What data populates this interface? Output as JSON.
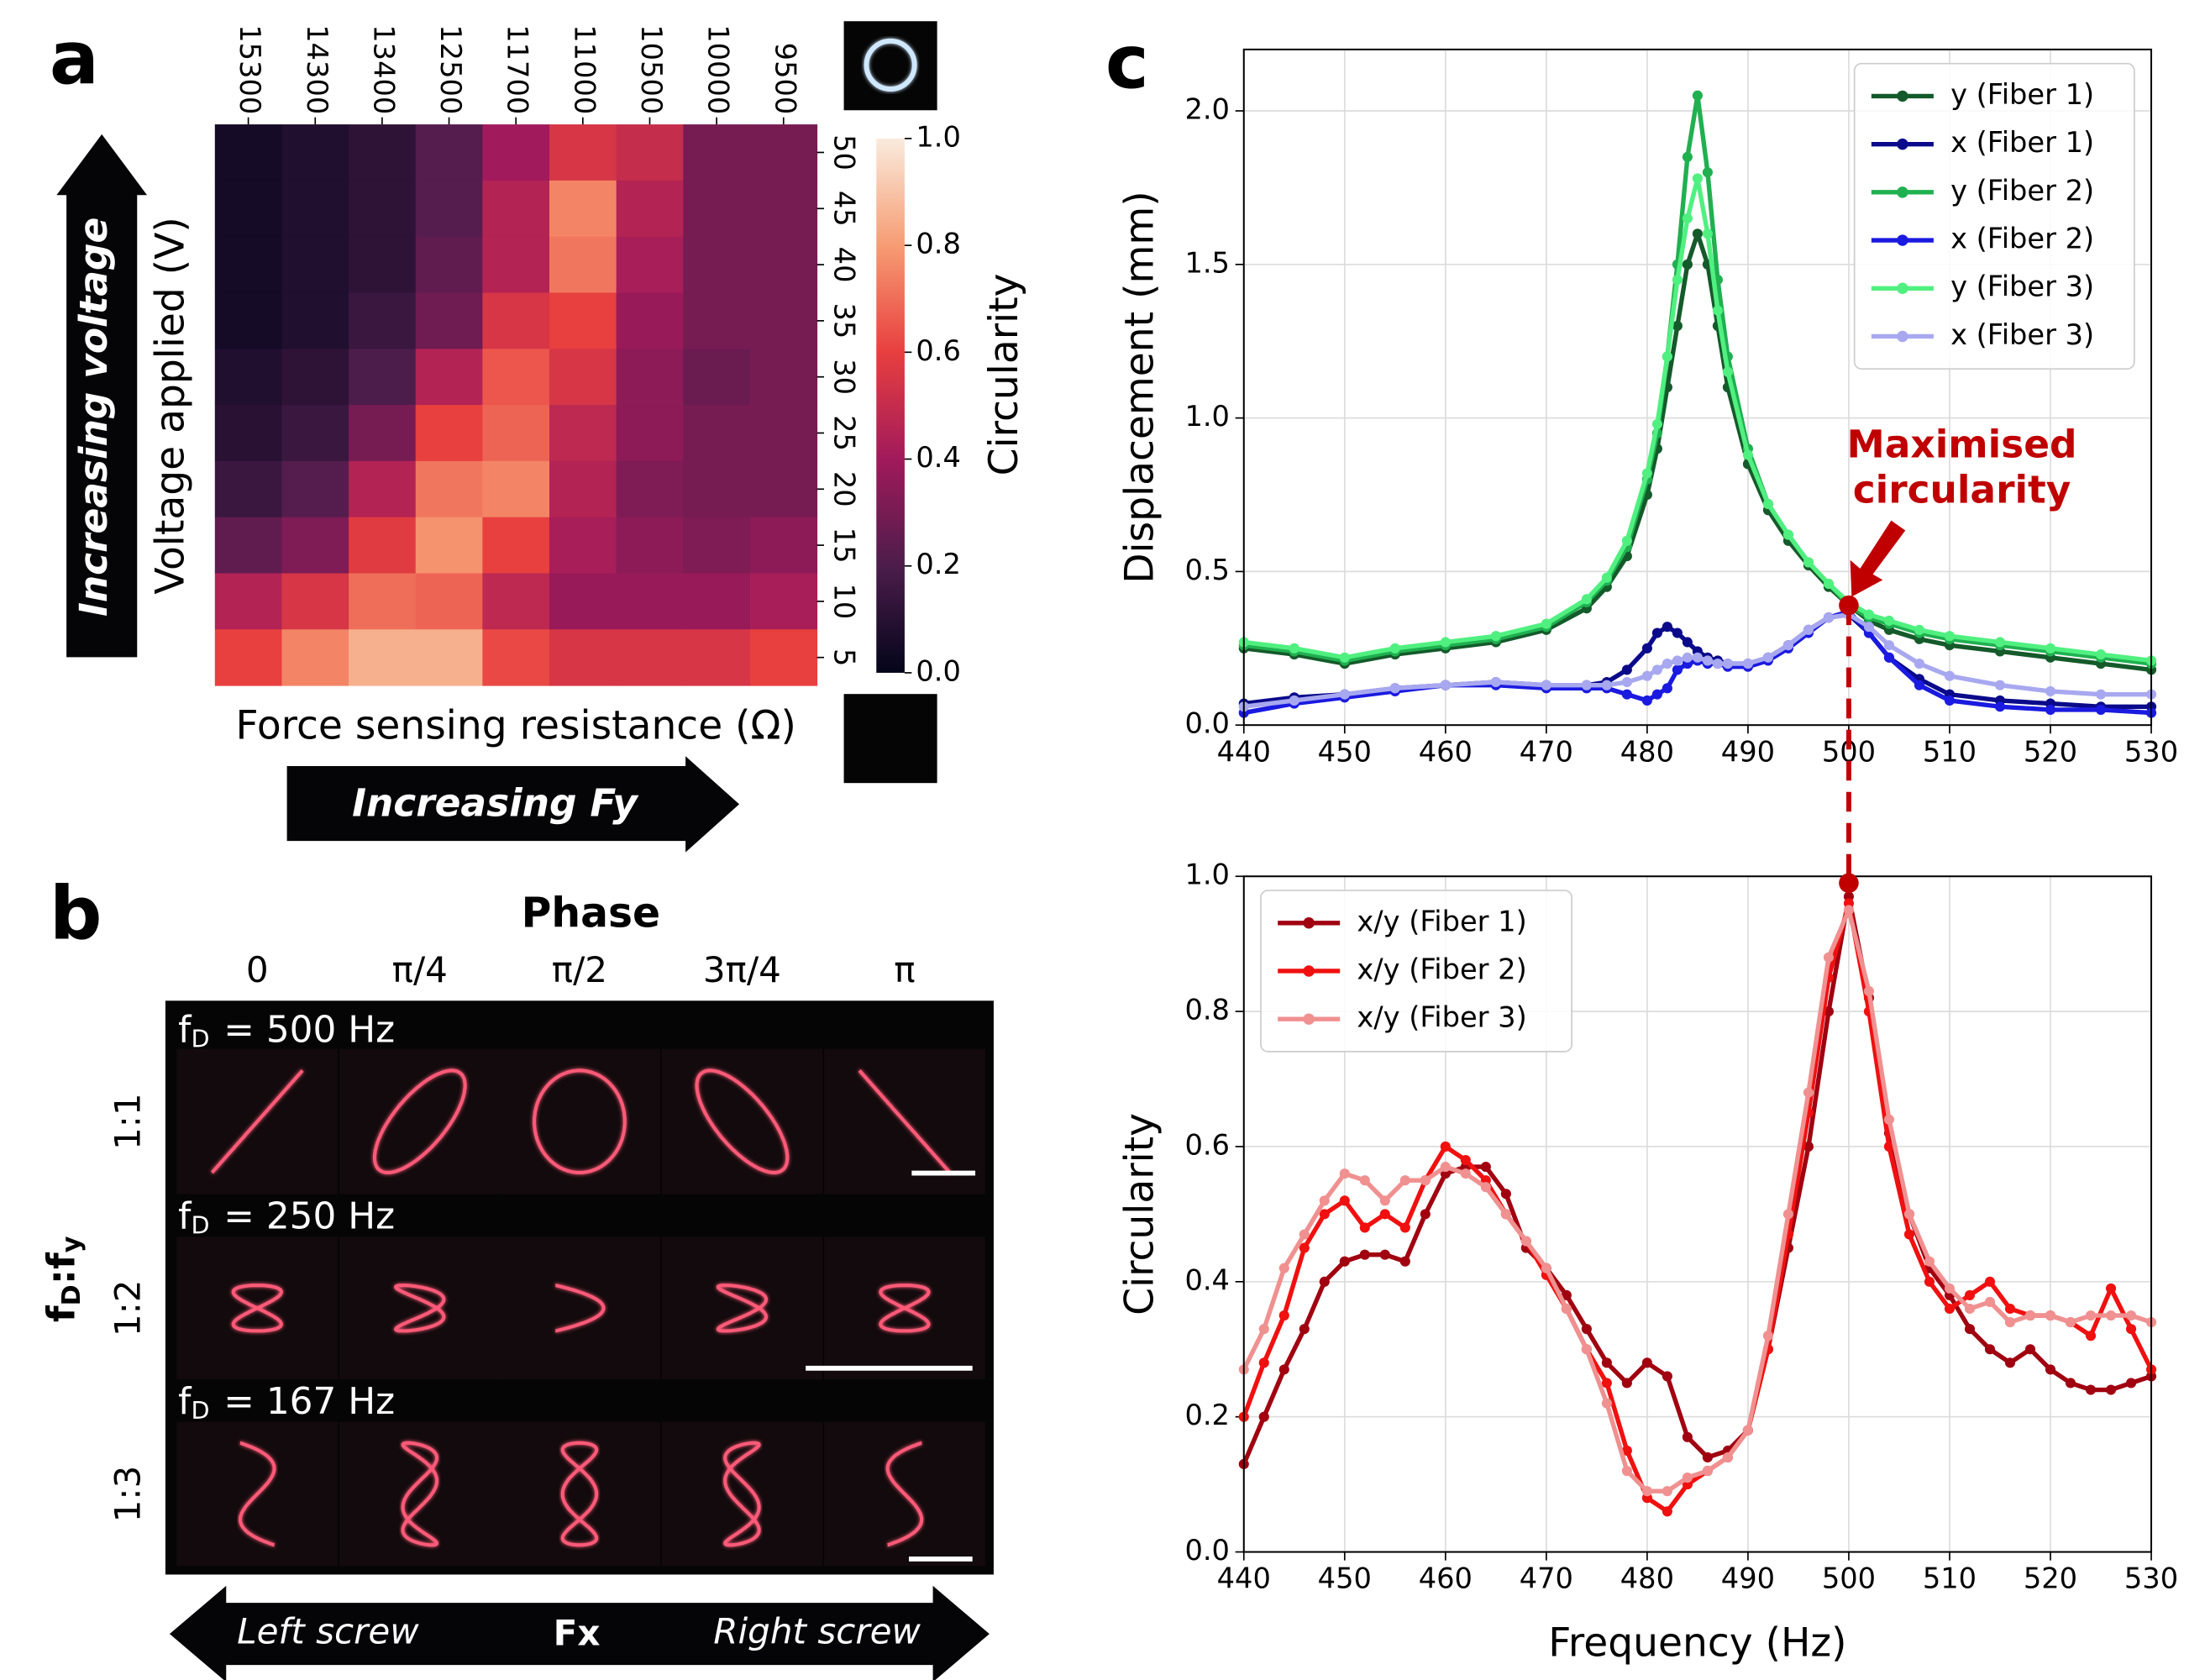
{
  "labels": {
    "panel_a": "a",
    "panel_b": "b",
    "panel_c": "c"
  },
  "panel_a": {
    "voltage_arrow": "Increasing voltage",
    "force_arrow": "Increasing Fy"
  },
  "panel_b": {
    "phase_title": "Phase",
    "phases": [
      "0",
      "π/4",
      "π/2",
      "3π/4",
      "π"
    ],
    "ratio_axis": {
      "f": "f",
      "sub1": "D",
      "mid": ":f",
      "sub2": "y"
    },
    "rows": [
      {
        "ratio": "1:1",
        "f": "f",
        "sub": "D",
        "rest": "= 500 Hz"
      },
      {
        "ratio": "1:2",
        "f": "f",
        "sub": "D",
        "rest": "= 250 Hz"
      },
      {
        "ratio": "1:3",
        "f": "f",
        "sub": "D",
        "rest": "= 167 Hz"
      }
    ],
    "arrow": {
      "left": "Left screw",
      "center": "Fx",
      "right": "Right screw"
    }
  },
  "chart_data": [
    {
      "type": "heatmap",
      "xlabel": "Force sensing resistance (Ω)",
      "ylabel": "Voltage applied (V)",
      "categories": [
        "15300",
        "14300",
        "13400",
        "12500",
        "11700",
        "11000",
        "10500",
        "10000",
        "9500"
      ],
      "rows": [
        "50",
        "45",
        "40",
        "35",
        "30",
        "25",
        "20",
        "15",
        "10",
        "5"
      ],
      "values": [
        [
          0.05,
          0.08,
          0.12,
          0.22,
          0.4,
          0.55,
          0.5,
          0.3,
          0.3
        ],
        [
          0.05,
          0.08,
          0.12,
          0.22,
          0.45,
          0.75,
          0.45,
          0.3,
          0.3
        ],
        [
          0.05,
          0.08,
          0.12,
          0.25,
          0.45,
          0.72,
          0.42,
          0.3,
          0.3
        ],
        [
          0.05,
          0.08,
          0.15,
          0.28,
          0.55,
          0.6,
          0.38,
          0.3,
          0.3
        ],
        [
          0.08,
          0.12,
          0.2,
          0.45,
          0.65,
          0.55,
          0.35,
          0.27,
          0.3
        ],
        [
          0.1,
          0.15,
          0.3,
          0.6,
          0.68,
          0.48,
          0.35,
          0.3,
          0.3
        ],
        [
          0.15,
          0.22,
          0.45,
          0.72,
          0.75,
          0.45,
          0.32,
          0.3,
          0.3
        ],
        [
          0.25,
          0.32,
          0.58,
          0.78,
          0.6,
          0.42,
          0.35,
          0.32,
          0.35
        ],
        [
          0.45,
          0.55,
          0.7,
          0.68,
          0.48,
          0.38,
          0.38,
          0.38,
          0.42
        ],
        [
          0.6,
          0.75,
          0.85,
          0.85,
          0.62,
          0.55,
          0.55,
          0.55,
          0.6
        ]
      ],
      "colormap": [
        "#03051a",
        "#4c1d4b",
        "#a11a5b",
        "#e83f3f",
        "#f69c73",
        "#faebdd"
      ],
      "colorbar": {
        "label": "Circularity",
        "lim": [
          0,
          1
        ],
        "ticks": [
          {
            "value": 0,
            "label": "0.0"
          },
          0.2,
          0.4,
          0.6,
          0.8,
          {
            "value": 1,
            "label": "1.0"
          }
        ]
      }
    },
    {
      "type": "line",
      "ylabel": "Displacement (mm)",
      "xlim": [
        440,
        530
      ],
      "ylim": [
        0,
        2.2
      ],
      "xticks": [
        440,
        450,
        460,
        470,
        480,
        490,
        500,
        510,
        520,
        530
      ],
      "yticks": [
        {
          "value": 0,
          "label": "0.0"
        },
        0.5,
        {
          "value": 1,
          "label": "1.0"
        },
        1.5,
        {
          "value": 2,
          "label": "2.0"
        }
      ],
      "grid": true,
      "legend": "upper right",
      "x": [
        440,
        445,
        450,
        455,
        460,
        465,
        470,
        474,
        476,
        478,
        480,
        481,
        482,
        483,
        484,
        485,
        486,
        487,
        488,
        490,
        492,
        494,
        496,
        498,
        500,
        502,
        504,
        507,
        510,
        515,
        520,
        525,
        530
      ],
      "series": [
        {
          "name": "y (Fiber 1)",
          "color": "#145a2a",
          "values": [
            0.25,
            0.23,
            0.2,
            0.23,
            0.25,
            0.27,
            0.31,
            0.38,
            0.45,
            0.55,
            0.75,
            0.9,
            1.1,
            1.3,
            1.5,
            1.6,
            1.5,
            1.3,
            1.1,
            0.85,
            0.7,
            0.6,
            0.52,
            0.45,
            0.39,
            0.34,
            0.31,
            0.28,
            0.26,
            0.24,
            0.22,
            0.2,
            0.18
          ]
        },
        {
          "name": "x (Fiber 1)",
          "color": "#0a0a8a",
          "values": [
            0.07,
            0.09,
            0.1,
            0.12,
            0.13,
            0.14,
            0.13,
            0.13,
            0.14,
            0.18,
            0.25,
            0.3,
            0.32,
            0.3,
            0.27,
            0.24,
            0.22,
            0.21,
            0.2,
            0.2,
            0.22,
            0.26,
            0.31,
            0.35,
            0.36,
            0.3,
            0.22,
            0.15,
            0.1,
            0.08,
            0.07,
            0.06,
            0.06
          ]
        },
        {
          "name": "y (Fiber 2)",
          "color": "#20b050",
          "values": [
            0.26,
            0.24,
            0.21,
            0.24,
            0.26,
            0.28,
            0.32,
            0.4,
            0.47,
            0.58,
            0.8,
            0.95,
            1.2,
            1.5,
            1.85,
            2.05,
            1.8,
            1.45,
            1.2,
            0.9,
            0.72,
            0.62,
            0.53,
            0.46,
            0.39,
            0.35,
            0.33,
            0.3,
            0.28,
            0.26,
            0.24,
            0.22,
            0.2
          ]
        },
        {
          "name": "x (Fiber 2)",
          "color": "#1a1ae0",
          "values": [
            0.04,
            0.07,
            0.09,
            0.11,
            0.13,
            0.13,
            0.12,
            0.12,
            0.12,
            0.1,
            0.08,
            0.1,
            0.12,
            0.18,
            0.2,
            0.21,
            0.2,
            0.2,
            0.19,
            0.19,
            0.21,
            0.25,
            0.3,
            0.35,
            0.37,
            0.3,
            0.22,
            0.13,
            0.08,
            0.06,
            0.05,
            0.05,
            0.04
          ]
        },
        {
          "name": "y (Fiber 3)",
          "color": "#50f080",
          "values": [
            0.27,
            0.25,
            0.22,
            0.25,
            0.27,
            0.29,
            0.33,
            0.41,
            0.48,
            0.6,
            0.82,
            0.98,
            1.2,
            1.45,
            1.65,
            1.78,
            1.6,
            1.35,
            1.15,
            0.88,
            0.72,
            0.62,
            0.53,
            0.46,
            0.4,
            0.36,
            0.34,
            0.31,
            0.29,
            0.27,
            0.25,
            0.23,
            0.21
          ]
        },
        {
          "name": "x (Fiber 3)",
          "color": "#a8a8f0",
          "values": [
            0.06,
            0.08,
            0.1,
            0.12,
            0.13,
            0.14,
            0.13,
            0.13,
            0.13,
            0.14,
            0.16,
            0.18,
            0.2,
            0.21,
            0.22,
            0.22,
            0.21,
            0.2,
            0.2,
            0.2,
            0.22,
            0.26,
            0.31,
            0.35,
            0.36,
            0.32,
            0.26,
            0.2,
            0.16,
            0.13,
            0.11,
            0.1,
            0.1
          ]
        }
      ],
      "annotation": {
        "lines": [
          "Maximised",
          "circularity"
        ],
        "color": "#c00000",
        "x": 500,
        "y": 0.39
      }
    },
    {
      "type": "line",
      "xlabel": "Frequency (Hz)",
      "ylabel": "Circularity",
      "xlim": [
        440,
        530
      ],
      "ylim": [
        0,
        1
      ],
      "xticks": [
        440,
        450,
        460,
        470,
        480,
        490,
        500,
        510,
        520,
        530
      ],
      "yticks": [
        {
          "value": 0,
          "label": "0.0"
        },
        0.2,
        0.4,
        0.6,
        0.8,
        {
          "value": 1,
          "label": "1.0"
        }
      ],
      "grid": true,
      "legend": "upper left",
      "x": [
        440,
        442,
        444,
        446,
        448,
        450,
        452,
        454,
        456,
        458,
        460,
        462,
        464,
        466,
        468,
        470,
        472,
        474,
        476,
        478,
        480,
        482,
        484,
        486,
        488,
        490,
        492,
        494,
        496,
        498,
        500,
        502,
        504,
        506,
        508,
        510,
        512,
        514,
        516,
        518,
        520,
        522,
        524,
        526,
        528,
        530
      ],
      "series": [
        {
          "name": "x/y (Fiber 1)",
          "color": "#a00010",
          "values": [
            0.13,
            0.2,
            0.27,
            0.33,
            0.4,
            0.43,
            0.44,
            0.44,
            0.43,
            0.5,
            0.56,
            0.57,
            0.57,
            0.53,
            0.45,
            0.42,
            0.38,
            0.33,
            0.28,
            0.25,
            0.28,
            0.26,
            0.17,
            0.14,
            0.15,
            0.18,
            0.3,
            0.45,
            0.6,
            0.8,
            0.97,
            0.82,
            0.62,
            0.5,
            0.42,
            0.38,
            0.33,
            0.3,
            0.28,
            0.3,
            0.27,
            0.25,
            0.24,
            0.24,
            0.25,
            0.26
          ]
        },
        {
          "name": "x/y (Fiber 2)",
          "color": "#f01010",
          "values": [
            0.2,
            0.28,
            0.35,
            0.45,
            0.5,
            0.52,
            0.48,
            0.5,
            0.48,
            0.55,
            0.6,
            0.58,
            0.55,
            0.5,
            0.46,
            0.41,
            0.36,
            0.3,
            0.25,
            0.15,
            0.08,
            0.06,
            0.1,
            0.12,
            0.14,
            0.18,
            0.3,
            0.47,
            0.65,
            0.85,
            0.96,
            0.8,
            0.6,
            0.47,
            0.4,
            0.36,
            0.38,
            0.4,
            0.36,
            0.35,
            0.35,
            0.34,
            0.32,
            0.39,
            0.33,
            0.27
          ]
        },
        {
          "name": "x/y (Fiber 3)",
          "color": "#f09090",
          "values": [
            0.27,
            0.33,
            0.42,
            0.47,
            0.52,
            0.56,
            0.55,
            0.52,
            0.55,
            0.55,
            0.57,
            0.56,
            0.54,
            0.5,
            0.46,
            0.42,
            0.36,
            0.3,
            0.22,
            0.12,
            0.09,
            0.09,
            0.11,
            0.12,
            0.14,
            0.18,
            0.32,
            0.5,
            0.68,
            0.88,
            0.95,
            0.83,
            0.64,
            0.5,
            0.43,
            0.39,
            0.36,
            0.37,
            0.34,
            0.35,
            0.35,
            0.34,
            0.35,
            0.35,
            0.35,
            0.34
          ]
        }
      ],
      "highlight": {
        "x": 500,
        "y": 0.99,
        "color": "#c00000"
      }
    }
  ]
}
